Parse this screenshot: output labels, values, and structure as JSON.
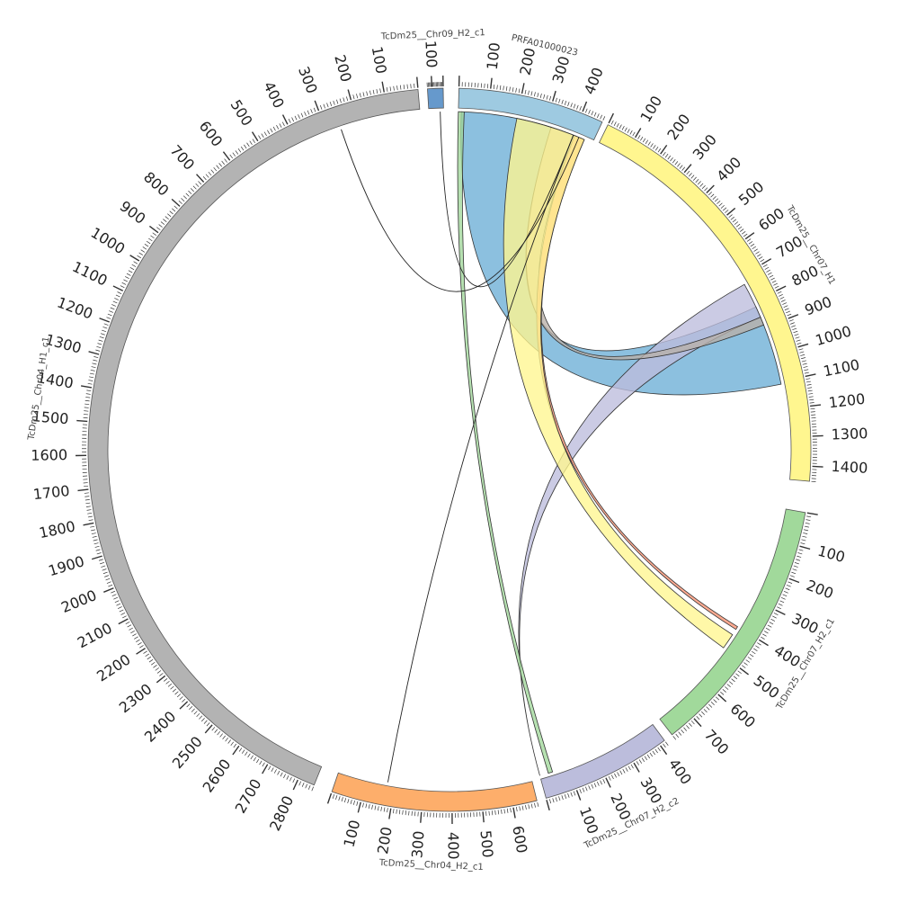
{
  "diagram": {
    "type": "circos-chord",
    "chromosomes": [
      {
        "id": "prfa",
        "name": "PRFA01000023",
        "length": 470,
        "color": "#9ecae1",
        "ticks": [
          100,
          200,
          300,
          400
        ]
      },
      {
        "id": "chr07h1",
        "name": "TcDm25__Chr07_H1",
        "length": 1450,
        "color": "#fff68f",
        "ticks": [
          100,
          200,
          300,
          400,
          500,
          600,
          700,
          800,
          900,
          1000,
          1100,
          1200,
          1300,
          1400
        ]
      },
      {
        "id": "chr07h2c1",
        "name": "TcDm25__Chr07_H2_c1",
        "length": 780,
        "color": "#a1d99b",
        "ticks": [
          100,
          200,
          300,
          400,
          500,
          600,
          700
        ]
      },
      {
        "id": "chr07h2c2",
        "name": "TcDm25__Chr07_H2_c2",
        "length": 420,
        "color": "#bcbddc",
        "ticks": [
          100,
          200,
          300,
          400
        ]
      },
      {
        "id": "chr04h2c1",
        "name": "TcDm25__Chr04_H2_c1",
        "length": 680,
        "color": "#fdae6b",
        "ticks": [
          100,
          200,
          300,
          400,
          500,
          600
        ]
      },
      {
        "id": "chr04h1c1",
        "name": "TcDm25__Chr04_H1_c1",
        "length": 2850,
        "color": "#b3b3b3",
        "ticks": [
          100,
          200,
          300,
          400,
          500,
          600,
          700,
          800,
          900,
          1000,
          1100,
          1200,
          1300,
          1400,
          1500,
          1600,
          1700,
          1800,
          1900,
          2000,
          2100,
          2200,
          2300,
          2400,
          2500,
          2600,
          2700,
          2800
        ]
      },
      {
        "id": "chr09h2c1",
        "name": "TcDm25__Chr09_H2_c1",
        "length": 140,
        "color": "#6699cc",
        "ticks": [
          100
        ]
      }
    ],
    "links": [
      {
        "from": "prfa",
        "fs": 10,
        "fe": 320,
        "to": "chr07h1",
        "ts": 820,
        "te": 1110,
        "color": "#6baed6"
      },
      {
        "from": "chr07h2c2",
        "fs": 0,
        "fe": 0,
        "to": "chr07h1",
        "ts": 730,
        "te": 860,
        "color": "#bcbddc"
      },
      {
        "from": "prfa",
        "fs": 320,
        "fe": 405,
        "to": "chr07h1",
        "ts": 860,
        "te": 890,
        "color": "#b8b0a8"
      },
      {
        "from": "prfa",
        "fs": 405,
        "fe": 440,
        "to": "chr07h2c1",
        "ts": 400,
        "te": 410,
        "color": "#fc9272"
      },
      {
        "from": "prfa",
        "fs": 200,
        "fe": 440,
        "to": "chr07h2c1",
        "ts": 430,
        "te": 480,
        "color": "#fff68f"
      },
      {
        "from": "prfa",
        "fs": 0,
        "fe": 20,
        "to": "chr07h2c2",
        "ts": 30,
        "te": 45,
        "color": "#a1d99b"
      },
      {
        "from": "prfa",
        "fs": 420,
        "fe": 425,
        "to": "chr04h1c1",
        "ts": 250,
        "te": 255,
        "color": "#ffeb3b"
      },
      {
        "from": "prfa",
        "fs": 400,
        "fe": 405,
        "to": "chr04h2c1",
        "ts": 170,
        "te": 175,
        "color": "#4f9fd0"
      },
      {
        "from": "chr09h2c1",
        "fs": 30,
        "fe": 32,
        "to": "prfa",
        "ts": 400,
        "te": 402,
        "color": "#888888"
      }
    ]
  }
}
